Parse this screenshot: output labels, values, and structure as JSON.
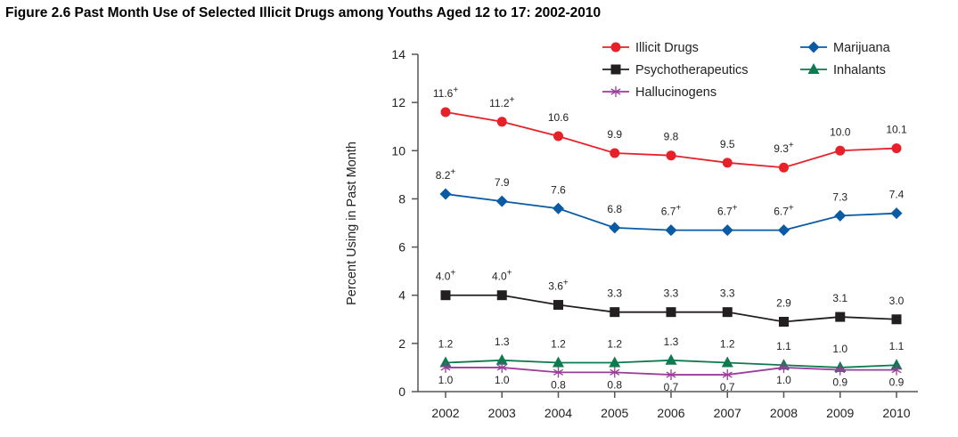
{
  "chart_data": {
    "type": "line",
    "title": "Figure 2.6 Past Month Use of Selected Illicit Drugs among Youths Aged 12 to 17: 2002-2010",
    "xlabel": "",
    "ylabel": "Percent Using in Past Month",
    "x": [
      "2002",
      "2003",
      "2004",
      "2005",
      "2006",
      "2007",
      "2008",
      "2009",
      "2010"
    ],
    "ylim": [
      0,
      14
    ],
    "yticks": [
      "0",
      "2",
      "4",
      "6",
      "8",
      "10",
      "12",
      "14"
    ],
    "grid": false,
    "legend_position": "top-right",
    "series": [
      {
        "name": "Illicit Drugs",
        "color": "#e8202a",
        "marker": "circle",
        "values": [
          11.6,
          11.2,
          10.6,
          9.9,
          9.8,
          9.5,
          9.3,
          10.0,
          10.1
        ],
        "labels": [
          "11.6+",
          "11.2+",
          "10.6",
          "9.9",
          "9.8",
          "9.5",
          "9.3+",
          "10.0",
          "10.1"
        ],
        "label_position": "above"
      },
      {
        "name": "Marijuana",
        "color": "#0a5aa5",
        "marker": "diamond",
        "values": [
          8.2,
          7.9,
          7.6,
          6.8,
          6.7,
          6.7,
          6.7,
          7.3,
          7.4
        ],
        "labels": [
          "8.2+",
          "7.9",
          "7.6",
          "6.8",
          "6.7+",
          "6.7+",
          "6.7+",
          "7.3",
          "7.4"
        ],
        "label_position": "above"
      },
      {
        "name": "Psychotherapeutics",
        "color": "#231f20",
        "marker": "square",
        "values": [
          4.0,
          4.0,
          3.6,
          3.3,
          3.3,
          3.3,
          2.9,
          3.1,
          3.0
        ],
        "labels": [
          "4.0+",
          "4.0+",
          "3.6+",
          "3.3",
          "3.3",
          "3.3",
          "2.9",
          "3.1",
          "3.0"
        ],
        "label_position": "above"
      },
      {
        "name": "Inhalants",
        "color": "#0d7a50",
        "marker": "triangle",
        "values": [
          1.2,
          1.3,
          1.2,
          1.2,
          1.3,
          1.2,
          1.1,
          1.0,
          1.1
        ],
        "labels": [
          "1.2",
          "1.3",
          "1.2",
          "1.2",
          "1.3",
          "1.2",
          "1.1",
          "1.0",
          "1.1"
        ],
        "label_position": "above"
      },
      {
        "name": "Hallucinogens",
        "color": "#9b3d9b",
        "marker": "asterisk",
        "values": [
          1.0,
          1.0,
          0.8,
          0.8,
          0.7,
          0.7,
          1.0,
          0.9,
          0.9
        ],
        "labels": [
          "1.0",
          "1.0",
          "0.8",
          "0.8",
          "0.7",
          "0.7",
          "1.0",
          "0.9",
          "0.9"
        ],
        "label_position": "below"
      }
    ],
    "legend_order": [
      "Illicit Drugs",
      "Marijuana",
      "Psychotherapeutics",
      "Inhalants",
      "Hallucinogens"
    ]
  }
}
